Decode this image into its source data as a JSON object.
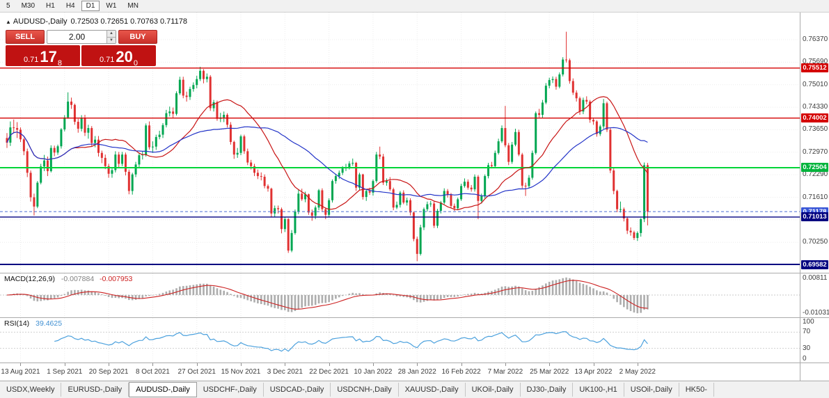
{
  "toolbar": {
    "timeframes": [
      {
        "label": "5",
        "active": false
      },
      {
        "label": "M30",
        "active": false
      },
      {
        "label": "H1",
        "active": false
      },
      {
        "label": "H4",
        "active": false
      },
      {
        "label": "D1",
        "active": true
      },
      {
        "label": "W1",
        "active": false
      },
      {
        "label": "MN",
        "active": false
      }
    ]
  },
  "chart": {
    "symbol_period": "AUDUSD-,Daily",
    "ohlc": "0.72503 0.72651 0.70763 0.71178"
  },
  "trade_panel": {
    "sell_label": "SELL",
    "buy_label": "BUY",
    "volume": "2.00",
    "sell_price": {
      "small": "0.71",
      "big": "17",
      "sup": "8"
    },
    "buy_price": {
      "small": "0.71",
      "big": "20",
      "sup": "0"
    }
  },
  "price_axis": {
    "labels": [
      "0.76370",
      "0.75690",
      "0.75010",
      "0.74330",
      "0.73650",
      "0.72970",
      "0.72290",
      "0.71610",
      "0.70930",
      "0.70250",
      "0.69570"
    ],
    "badges": [
      {
        "text": "0.75512",
        "bg": "#D40000"
      },
      {
        "text": "0.74002",
        "bg": "#D40000"
      },
      {
        "text": "0.72504",
        "bg": "#00B43C"
      },
      {
        "text": "0.71178",
        "bg": "#3A57D7"
      },
      {
        "text": "0.71013",
        "bg": "#000080"
      },
      {
        "text": "0.69582",
        "bg": "#000080"
      }
    ]
  },
  "macd": {
    "name": "MACD(12,26,9)",
    "value_main": "-0.007884",
    "value_signal": "-0.007953",
    "axis_top": "0.00811",
    "axis_bottom": "-0.01031"
  },
  "rsi": {
    "name": "RSI(14)",
    "value": "39.4625",
    "axis": [
      100,
      70,
      30,
      0
    ],
    "levels": [
      70,
      30
    ]
  },
  "tabs": {
    "items": [
      {
        "label": "USDX,Weekly",
        "active": false
      },
      {
        "label": "EURUSD-,Daily",
        "active": false
      },
      {
        "label": "AUDUSD-,Daily",
        "active": true
      },
      {
        "label": "USDCHF-,Daily",
        "active": false
      },
      {
        "label": "USDCAD-,Daily",
        "active": false
      },
      {
        "label": "USDCNH-,Daily",
        "active": false
      },
      {
        "label": "XAUUSD-,Daily",
        "active": false
      },
      {
        "label": "UKOil-,Daily",
        "active": false
      },
      {
        "label": "DJ30-,Daily",
        "active": false
      },
      {
        "label": "UK100-,H1",
        "active": false
      },
      {
        "label": "USOil-,Daily",
        "active": false
      },
      {
        "label": "HK50-",
        "active": false
      }
    ]
  },
  "colors": {
    "candle_up": "#00A651",
    "candle_down": "#E03131",
    "ma_fast": "#C81414",
    "ma_slow": "#2334C8",
    "bid_line": "#4A6CD4",
    "macd_hist": "#ADADAD",
    "macd_signal": "#CC2020",
    "rsi_line": "#4AA0DD",
    "grid": "#ECECEC"
  },
  "chart_data": {
    "type": "candlestick",
    "symbol": "AUDUSD-",
    "period": "Daily",
    "ylim": [
      0.6933,
      0.7719
    ],
    "current_price": 0.71178,
    "first_open": 0.734,
    "hlines": [
      {
        "price": 0.75512,
        "color": "#D40000",
        "width": 1.4
      },
      {
        "price": 0.74002,
        "color": "#D40000",
        "width": 1.4
      },
      {
        "price": 0.72504,
        "color": "#00D437",
        "width": 2
      },
      {
        "price": 0.71013,
        "color": "#000080",
        "width": 1.4
      },
      {
        "price": 0.69582,
        "color": "#000080",
        "width": 2
      }
    ],
    "moving_averages": [
      {
        "period": 20,
        "color": "#C81414"
      },
      {
        "period": 40,
        "color": "#2334C8"
      }
    ],
    "indicators": {
      "macd": {
        "fast": 12,
        "slow": 26,
        "signal": 9
      },
      "rsi": {
        "period": 14
      }
    },
    "x_ticks": {
      "start_index": 4,
      "step": 13,
      "labels": [
        "13 Aug 2021",
        "1 Sep 2021",
        "20 Sep 2021",
        "8 Oct 2021",
        "27 Oct 2021",
        "15 Nov 2021",
        "3 Dec 2021",
        "22 Dec 2021",
        "10 Jan 2022",
        "28 Jan 2022",
        "16 Feb 2022",
        "7 Mar 2022",
        "25 Mar 2022",
        "13 Apr 2022",
        "2 May 2022"
      ]
    },
    "candles": {
      "closes": [
        0.7326,
        0.7372,
        0.737,
        0.7365,
        0.7336,
        0.73,
        0.7235,
        0.7161,
        0.7133,
        0.7205,
        0.7254,
        0.7272,
        0.724,
        0.731,
        0.7296,
        0.7315,
        0.7366,
        0.7402,
        0.745,
        0.744,
        0.7389,
        0.7368,
        0.74,
        0.7356,
        0.737,
        0.7325,
        0.7335,
        0.7295,
        0.728,
        0.7255,
        0.7232,
        0.7243,
        0.729,
        0.7262,
        0.729,
        0.7238,
        0.718,
        0.723,
        0.726,
        0.7288,
        0.729,
        0.7378,
        0.7312,
        0.7314,
        0.7343,
        0.735,
        0.7379,
        0.7415,
        0.742,
        0.7413,
        0.7475,
        0.7516,
        0.7468,
        0.7464,
        0.7488,
        0.75,
        0.7518,
        0.7543,
        0.7518,
        0.7525,
        0.743,
        0.7448,
        0.7398,
        0.7402,
        0.741,
        0.738,
        0.7328,
        0.729,
        0.7295,
        0.7345,
        0.73,
        0.7266,
        0.7255,
        0.7235,
        0.7225,
        0.7223,
        0.7195,
        0.7187,
        0.7112,
        0.7128,
        0.7125,
        0.7065,
        0.7095,
        0.7,
        0.7053,
        0.7118,
        0.7172,
        0.7155,
        0.717,
        0.7115,
        0.7105,
        0.713,
        0.7182,
        0.7125,
        0.7108,
        0.7152,
        0.721,
        0.7225,
        0.7235,
        0.7248,
        0.7252,
        0.7263,
        0.7265,
        0.719,
        0.723,
        0.7162,
        0.718,
        0.7175,
        0.721,
        0.729,
        0.7284,
        0.7205,
        0.721,
        0.7185,
        0.713,
        0.7138,
        0.7175,
        0.7145,
        0.7152,
        0.7115,
        0.7035,
        0.699,
        0.707,
        0.7125,
        0.714,
        0.7142,
        0.7075,
        0.712,
        0.7145,
        0.718,
        0.7168,
        0.7135,
        0.7128,
        0.7155,
        0.7195,
        0.7208,
        0.719,
        0.7185,
        0.7223,
        0.715,
        0.7165,
        0.7225,
        0.7258,
        0.7255,
        0.7295,
        0.733,
        0.737,
        0.7318,
        0.7268,
        0.732,
        0.7358,
        0.729,
        0.7196,
        0.7195,
        0.722,
        0.7295,
        0.7415,
        0.741,
        0.7447,
        0.7498,
        0.7515,
        0.7518,
        0.7495,
        0.7532,
        0.7577,
        0.7575,
        0.7512,
        0.7477,
        0.746,
        0.742,
        0.7455,
        0.745,
        0.7395,
        0.739,
        0.7352,
        0.7375,
        0.7445,
        0.7365,
        0.7242,
        0.718,
        0.7125,
        0.7125,
        0.7097,
        0.706,
        0.7055,
        0.7038,
        0.7053,
        0.7095,
        0.7258,
        0.7118
      ],
      "highs": [
        0.7355,
        0.739,
        0.7396,
        0.7388,
        0.7372,
        0.734,
        0.7308,
        0.7242,
        0.7172,
        0.721,
        0.7262,
        0.7289,
        0.7284,
        0.7318,
        0.7317,
        0.732,
        0.737,
        0.7409,
        0.7478,
        0.7462,
        0.7444,
        0.7398,
        0.7409,
        0.741,
        0.738,
        0.7376,
        0.7346,
        0.7346,
        0.7302,
        0.729,
        0.7262,
        0.725,
        0.73,
        0.7298,
        0.7298,
        0.7296,
        0.7245,
        0.7235,
        0.7268,
        0.7296,
        0.73,
        0.7384,
        0.739,
        0.733,
        0.735,
        0.7362,
        0.7385,
        0.7425,
        0.7435,
        0.7432,
        0.7481,
        0.7525,
        0.7525,
        0.748,
        0.7495,
        0.7508,
        0.7528,
        0.7555,
        0.7548,
        0.7535,
        0.753,
        0.7455,
        0.7453,
        0.7416,
        0.742,
        0.7415,
        0.7388,
        0.7332,
        0.731,
        0.735,
        0.735,
        0.7308,
        0.7274,
        0.7262,
        0.7245,
        0.7236,
        0.723,
        0.72,
        0.719,
        0.7136,
        0.7136,
        0.713,
        0.7102,
        0.7098,
        0.7062,
        0.7124,
        0.7185,
        0.7187,
        0.7178,
        0.7172,
        0.7124,
        0.7136,
        0.7186,
        0.7188,
        0.713,
        0.7158,
        0.7215,
        0.7232,
        0.7242,
        0.7255,
        0.7262,
        0.727,
        0.7278,
        0.7268,
        0.7235,
        0.7232,
        0.7186,
        0.719,
        0.7215,
        0.7298,
        0.7314,
        0.7292,
        0.7218,
        0.7222,
        0.719,
        0.7148,
        0.718,
        0.7182,
        0.716,
        0.7158,
        0.7118,
        0.7042,
        0.7078,
        0.713,
        0.7148,
        0.715,
        0.7148,
        0.7126,
        0.715,
        0.7188,
        0.7186,
        0.7174,
        0.7142,
        0.716,
        0.7202,
        0.7218,
        0.7215,
        0.7198,
        0.723,
        0.7228,
        0.7172,
        0.723,
        0.7265,
        0.7268,
        0.7302,
        0.7338,
        0.7378,
        0.7437,
        0.7325,
        0.7328,
        0.7368,
        0.7365,
        0.7295,
        0.7205,
        0.7228,
        0.7302,
        0.742,
        0.7428,
        0.7455,
        0.7506,
        0.7522,
        0.7526,
        0.7525,
        0.7538,
        0.7584,
        0.7661,
        0.758,
        0.752,
        0.7484,
        0.7465,
        0.7462,
        0.7466,
        0.7455,
        0.7399,
        0.7394,
        0.738,
        0.7458,
        0.745,
        0.7372,
        0.725,
        0.7184,
        0.7148,
        0.713,
        0.71,
        0.707,
        0.706,
        0.7058,
        0.7098,
        0.7266,
        0.7265
      ],
      "lows": [
        0.731,
        0.7316,
        0.7355,
        0.734,
        0.7328,
        0.7288,
        0.7222,
        0.7148,
        0.7106,
        0.7128,
        0.72,
        0.724,
        0.7225,
        0.7236,
        0.7285,
        0.7289,
        0.7308,
        0.736,
        0.7398,
        0.7428,
        0.738,
        0.7356,
        0.736,
        0.7346,
        0.7338,
        0.7316,
        0.7312,
        0.7284,
        0.7264,
        0.7246,
        0.722,
        0.722,
        0.7236,
        0.725,
        0.7255,
        0.7227,
        0.717,
        0.7169,
        0.7222,
        0.7252,
        0.7275,
        0.7284,
        0.7305,
        0.7295,
        0.7304,
        0.7336,
        0.734,
        0.7372,
        0.7405,
        0.74,
        0.7408,
        0.747,
        0.746,
        0.745,
        0.7455,
        0.748,
        0.749,
        0.7512,
        0.7505,
        0.7508,
        0.7422,
        0.742,
        0.7392,
        0.7388,
        0.7388,
        0.7372,
        0.732,
        0.7277,
        0.728,
        0.7288,
        0.7292,
        0.7258,
        0.7245,
        0.7225,
        0.7216,
        0.7212,
        0.7188,
        0.7178,
        0.71,
        0.7102,
        0.7112,
        0.7052,
        0.7056,
        0.6993,
        0.6995,
        0.7048,
        0.711,
        0.715,
        0.7146,
        0.7108,
        0.709,
        0.7095,
        0.7122,
        0.7118,
        0.7095,
        0.71,
        0.7145,
        0.7202,
        0.7216,
        0.7228,
        0.724,
        0.7245,
        0.7256,
        0.718,
        0.7182,
        0.7154,
        0.715,
        0.7168,
        0.7166,
        0.7205,
        0.7276,
        0.7198,
        0.7196,
        0.718,
        0.7122,
        0.7125,
        0.713,
        0.714,
        0.7136,
        0.7106,
        0.7028,
        0.6968,
        0.6985,
        0.7062,
        0.7118,
        0.7132,
        0.7068,
        0.7068,
        0.7112,
        0.714,
        0.716,
        0.7128,
        0.712,
        0.7122,
        0.715,
        0.719,
        0.7184,
        0.7178,
        0.7178,
        0.7095,
        0.7142,
        0.7158,
        0.7218,
        0.7248,
        0.725,
        0.729,
        0.7325,
        0.7312,
        0.7258,
        0.7262,
        0.7315,
        0.7285,
        0.7188,
        0.7165,
        0.7188,
        0.7214,
        0.729,
        0.7402,
        0.74,
        0.7442,
        0.749,
        0.7506,
        0.7486,
        0.749,
        0.7526,
        0.7568,
        0.7504,
        0.747,
        0.745,
        0.741,
        0.7412,
        0.7442,
        0.7386,
        0.738,
        0.7344,
        0.7346,
        0.7368,
        0.7358,
        0.7234,
        0.717,
        0.7116,
        0.7115,
        0.7088,
        0.705,
        0.7045,
        0.7032,
        0.7029,
        0.7042,
        0.7086,
        0.7076
      ]
    }
  }
}
